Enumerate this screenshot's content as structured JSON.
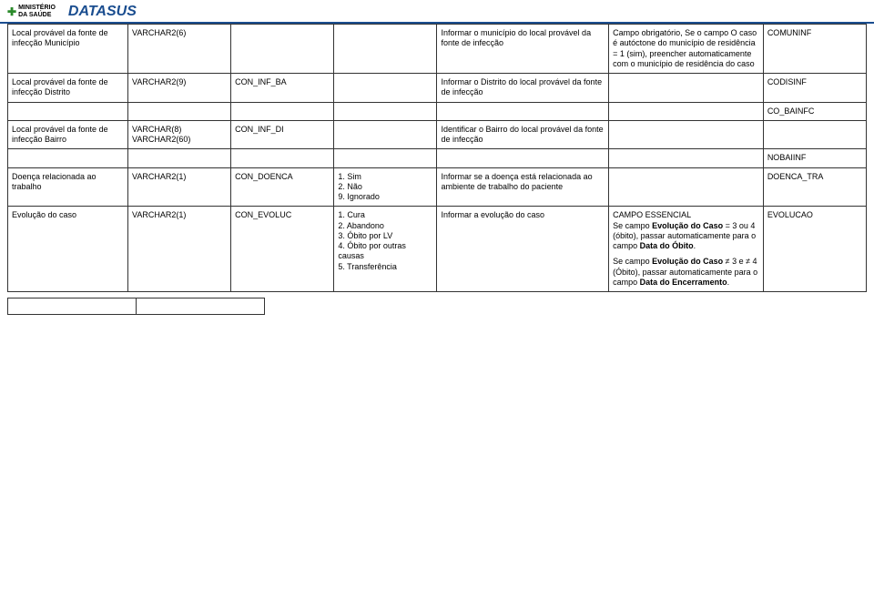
{
  "header": {
    "ministerio_line1": "MINISTÉRIO",
    "ministerio_line2": "DA SAÚDE",
    "datasus": "DATASUS"
  },
  "rows": [
    {
      "field": "Local provável da fonte de infecção Município",
      "type": "VARCHAR2(6)",
      "code": "",
      "opts": "",
      "desc": "Informar o município do local provável da fonte de infecção",
      "note": "Campo obrigatório, Se o campo O caso é autóctone do município de residência = 1 (sim), preencher automaticamente com o município de residência do caso",
      "var": "COMUNINF"
    },
    {
      "field": "Local provável da fonte de infecção Distrito",
      "type": "VARCHAR2(9)",
      "code": "CON_INF_BA",
      "opts": "",
      "desc": "Informar o Distrito do local provável da fonte de infecção",
      "note": "",
      "var": "CODISINF"
    },
    {
      "field": "",
      "type": "",
      "code": "",
      "opts": "",
      "desc": "",
      "note": "",
      "var": "CO_BAINFC"
    },
    {
      "field": "Local provável da fonte de infecção Bairro",
      "type": "VARCHAR(8) VARCHAR2(60)",
      "code": "CON_INF_DI",
      "opts": "",
      "desc": "Identificar o Bairro do local provável da fonte de infecção",
      "note": "",
      "var": ""
    },
    {
      "field": "",
      "type": "",
      "code": "",
      "opts": "",
      "desc": "",
      "note": "",
      "var": "NOBAIINF"
    },
    {
      "field": "Doença relacionada ao trabalho",
      "type": "VARCHAR2(1)",
      "code": "CON_DOENCA",
      "opts_list": [
        "Sim",
        "Não",
        "Ignorado"
      ],
      "opts_nums": [
        "1.",
        "2.",
        "9."
      ],
      "desc": "Informar se a doença está relacionada ao ambiente de trabalho do paciente",
      "note": "",
      "var": "DOENCA_TRA"
    },
    {
      "field": "Evolução do caso",
      "type": "VARCHAR2(1)",
      "code": "CON_EVOLUC",
      "opts_list": [
        "Cura",
        "Abandono",
        "Óbito por LV",
        "Óbito por outras causas",
        "Transferência"
      ],
      "opts_nums": [
        "1.",
        "2.",
        "3.",
        "4.",
        "5."
      ],
      "desc": "Informar a evolução do caso",
      "note_html": true,
      "note_parts": [
        "CAMPO ESSENCIAL",
        "Se campo ",
        "Evolução do Caso",
        " = 3 ou 4 (óbito), passar automaticamente para o campo ",
        "Data do Óbito",
        ".",
        "Se campo ",
        "Evolução do Caso",
        " ≠ 3 e ≠ 4 (Óbito), passar automaticamente para o campo ",
        "Data do Encerramento",
        "."
      ],
      "var": "EVOLUCAO"
    }
  ]
}
